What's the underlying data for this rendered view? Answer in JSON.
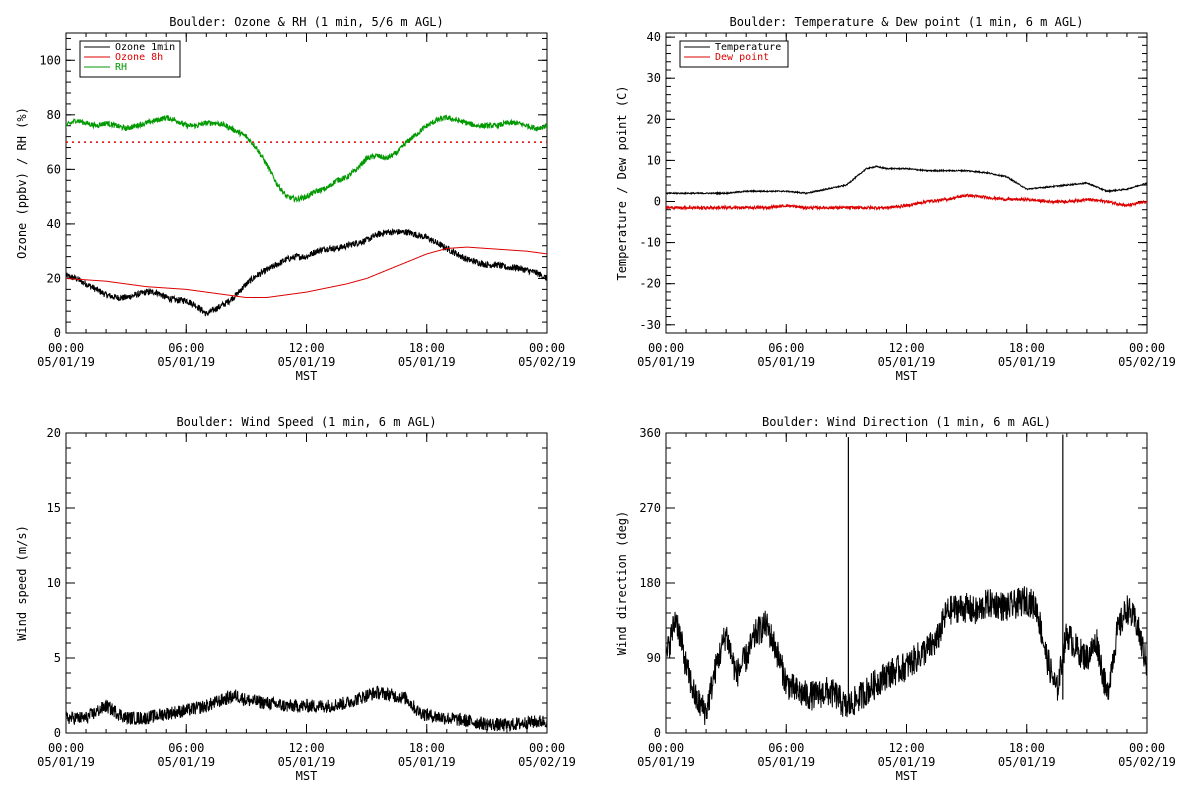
{
  "chart_data": [
    {
      "type": "line",
      "title": "Boulder: Ozone & RH (1 min, 5/6 m AGL)",
      "xlabel": "MST",
      "ylabel": "Ozone (ppbv) / RH (%)",
      "ylim": [
        0,
        110
      ],
      "yticks": [
        "0",
        "20",
        "40",
        "60",
        "80",
        "100"
      ],
      "ytick_values": [
        0,
        20,
        40,
        60,
        80,
        100
      ],
      "xticks": [
        {
          "time": "00:00",
          "date": "05/01/19"
        },
        {
          "time": "06:00",
          "date": "05/01/19"
        },
        {
          "time": "12:00",
          "date": "05/01/19"
        },
        {
          "time": "18:00",
          "date": "05/01/19"
        },
        {
          "time": "00:00",
          "date": "05/02/19"
        }
      ],
      "xlim_hours": [
        0,
        24
      ],
      "legend": [
        {
          "label": "Ozone 1min",
          "color": "#000000"
        },
        {
          "label": "Ozone 8h",
          "color": "#dd0000"
        },
        {
          "label": "RH",
          "color": "#009900"
        }
      ],
      "legend_position": "top-left",
      "reference_line": {
        "y": 70,
        "color": "#dd0000",
        "style": "dotted"
      },
      "series": [
        {
          "name": "Ozone 1min",
          "color": "#000000",
          "noise": 1.2,
          "x": [
            0,
            0.5,
            1,
            1.5,
            2,
            2.5,
            3,
            3.5,
            4,
            4.5,
            5,
            5.5,
            6,
            6.5,
            7,
            7.5,
            8,
            8.5,
            9,
            9.5,
            10,
            10.5,
            11,
            11.5,
            12,
            12.5,
            13,
            13.5,
            14,
            14.5,
            15,
            15.5,
            16,
            16.5,
            17,
            17.5,
            18,
            18.5,
            19,
            19.5,
            20,
            20.5,
            21,
            21.5,
            22,
            22.5,
            23,
            23.5,
            24
          ],
          "y": [
            21,
            20,
            18,
            16,
            14,
            13,
            13,
            14,
            15,
            15,
            13,
            12,
            12,
            10,
            7,
            9,
            11,
            14,
            18,
            21,
            23,
            25,
            27,
            28,
            28,
            30,
            31,
            31,
            32,
            33,
            34,
            36,
            37,
            37,
            37,
            36,
            35,
            33,
            31,
            29,
            27,
            26,
            25,
            25,
            24,
            24,
            23,
            22,
            20
          ]
        },
        {
          "name": "Ozone 8h",
          "color": "#dd0000",
          "noise": 0,
          "x": [
            0,
            1,
            2,
            3,
            4,
            5,
            6,
            7,
            8,
            9,
            10,
            11,
            12,
            13,
            14,
            15,
            16,
            17,
            18,
            19,
            20,
            21,
            22,
            23,
            24
          ],
          "y": [
            20,
            19.5,
            19,
            18,
            17,
            16.5,
            16,
            15,
            14,
            13,
            13,
            14,
            15,
            16.5,
            18,
            20,
            23,
            26,
            29,
            31,
            31.5,
            31,
            30.5,
            30,
            29
          ]
        },
        {
          "name": "RH",
          "color": "#009900",
          "noise": 1.0,
          "x": [
            0,
            0.5,
            1,
            1.5,
            2,
            2.5,
            3,
            3.5,
            4,
            4.5,
            5,
            5.5,
            6,
            6.5,
            7,
            7.5,
            8,
            8.5,
            9,
            9.5,
            10,
            10.5,
            11,
            11.5,
            12,
            12.5,
            13,
            13.5,
            14,
            14.5,
            15,
            15.5,
            16,
            16.5,
            17,
            17.5,
            18,
            18.5,
            19,
            19.5,
            20,
            20.5,
            21,
            21.5,
            22,
            22.5,
            23,
            23.5,
            24
          ],
          "y": [
            76,
            78,
            77,
            76,
            77,
            76,
            75,
            76,
            77,
            78,
            79,
            78,
            76,
            76,
            77,
            77,
            76,
            74,
            72,
            68,
            62,
            55,
            50,
            49,
            50,
            52,
            53,
            56,
            57,
            60,
            64,
            65,
            64,
            66,
            70,
            73,
            76,
            78,
            79,
            78,
            77,
            76,
            76,
            76,
            77,
            77,
            76,
            75,
            76
          ]
        }
      ]
    },
    {
      "type": "line",
      "title": "Boulder: Temperature & Dew point (1 min, 6 m AGL)",
      "xlabel": "MST",
      "ylabel": "Temperature / Dew point (C)",
      "ylim": [
        -32,
        41
      ],
      "yticks": [
        "-30",
        "-20",
        "-10",
        "0",
        "10",
        "20",
        "30",
        "40"
      ],
      "ytick_values": [
        -30,
        -20,
        -10,
        0,
        10,
        20,
        30,
        40
      ],
      "xticks": [
        {
          "time": "00:00",
          "date": "05/01/19"
        },
        {
          "time": "06:00",
          "date": "05/01/19"
        },
        {
          "time": "12:00",
          "date": "05/01/19"
        },
        {
          "time": "18:00",
          "date": "05/01/19"
        },
        {
          "time": "00:00",
          "date": "05/02/19"
        }
      ],
      "xlim_hours": [
        0,
        24
      ],
      "legend": [
        {
          "label": "Temperature",
          "color": "#000000"
        },
        {
          "label": "Dew point",
          "color": "#dd0000"
        }
      ],
      "legend_position": "top-left",
      "series": [
        {
          "name": "Temperature",
          "color": "#000000",
          "noise": 0.15,
          "x": [
            0,
            1,
            2,
            3,
            4,
            5,
            6,
            7,
            8,
            9,
            9.5,
            10,
            10.5,
            11,
            12,
            13,
            14,
            15,
            16,
            17,
            18,
            19,
            20,
            21,
            22,
            23,
            24
          ],
          "y": [
            2,
            2,
            2,
            2,
            2.5,
            2.5,
            2.5,
            2,
            3,
            4,
            6,
            8,
            8.5,
            8,
            8,
            7.5,
            7.5,
            7.5,
            7,
            6,
            3,
            3.5,
            4,
            4.5,
            2.5,
            3,
            4.5
          ]
        },
        {
          "name": "Dew point",
          "color": "#dd0000",
          "noise": 0.35,
          "x": [
            0,
            1,
            2,
            3,
            4,
            5,
            6,
            7,
            8,
            9,
            10,
            11,
            12,
            13,
            14,
            15,
            16,
            17,
            18,
            19,
            20,
            21,
            22,
            23,
            24
          ],
          "y": [
            -1.5,
            -1.5,
            -1.5,
            -1.5,
            -1.5,
            -1.5,
            -1,
            -1.5,
            -1.5,
            -1.5,
            -1.5,
            -1.5,
            -1,
            0,
            0.5,
            1.5,
            1,
            0.5,
            0.5,
            0,
            0,
            0.5,
            0,
            -1,
            0
          ]
        }
      ]
    },
    {
      "type": "line",
      "title": "Boulder: Wind Speed (1 min, 6 m AGL)",
      "xlabel": "MST",
      "ylabel": "Wind speed (m/s)",
      "ylim": [
        0,
        20
      ],
      "yticks": [
        "0",
        "5",
        "10",
        "15",
        "20"
      ],
      "ytick_values": [
        0,
        5,
        10,
        15,
        20
      ],
      "xticks": [
        {
          "time": "00:00",
          "date": "05/01/19"
        },
        {
          "time": "06:00",
          "date": "05/01/19"
        },
        {
          "time": "12:00",
          "date": "05/01/19"
        },
        {
          "time": "18:00",
          "date": "05/01/19"
        },
        {
          "time": "00:00",
          "date": "05/02/19"
        }
      ],
      "xlim_hours": [
        0,
        24
      ],
      "series": [
        {
          "color": "#000000",
          "noise": 0.45,
          "x": [
            0,
            1,
            2,
            3,
            4,
            5,
            6,
            7,
            8,
            8.5,
            9,
            10,
            11,
            12,
            13,
            14,
            15,
            15.5,
            16,
            17,
            17.5,
            18,
            19,
            20,
            21,
            22,
            23,
            24
          ],
          "y": [
            1,
            1,
            1.8,
            1,
            1,
            1.3,
            1.5,
            1.8,
            2.3,
            2.5,
            2.2,
            2,
            1.8,
            1.8,
            1.8,
            2,
            2.5,
            2.7,
            2.6,
            2.3,
            1.5,
            1.2,
            1,
            0.8,
            0.6,
            0.5,
            0.7,
            0.8
          ]
        }
      ]
    },
    {
      "type": "line",
      "title": "Boulder: Wind Direction (1 min, 6 m AGL)",
      "xlabel": "MST",
      "ylabel": "Wind direction (deg)",
      "ylim": [
        0,
        360
      ],
      "yticks": [
        "0",
        "90",
        "180",
        "270",
        "360"
      ],
      "ytick_values": [
        0,
        90,
        180,
        270,
        360
      ],
      "xticks": [
        {
          "time": "00:00",
          "date": "05/01/19"
        },
        {
          "time": "06:00",
          "date": "05/01/19"
        },
        {
          "time": "12:00",
          "date": "05/01/19"
        },
        {
          "time": "18:00",
          "date": "05/01/19"
        },
        {
          "time": "00:00",
          "date": "05/02/19"
        }
      ],
      "xlim_hours": [
        0,
        24
      ],
      "spikes": [
        {
          "x": 9.1,
          "y": 355
        },
        {
          "x": 19.8,
          "y": 358
        }
      ],
      "series": [
        {
          "color": "#000000",
          "noise": 18,
          "x": [
            0,
            0.5,
            1,
            1.5,
            2,
            2.5,
            3,
            3.5,
            4,
            4.5,
            5,
            5.5,
            6,
            6.5,
            7,
            7.5,
            8,
            8.5,
            9,
            9.5,
            10,
            10.5,
            11,
            11.5,
            12,
            12.5,
            13,
            13.5,
            14,
            14.5,
            15,
            15.5,
            16,
            16.5,
            17,
            17.5,
            18,
            18.5,
            19,
            19.5,
            20,
            20.5,
            21,
            21.5,
            22,
            22.5,
            23,
            23.5,
            24
          ],
          "y": [
            90,
            140,
            80,
            40,
            25,
            80,
            120,
            70,
            90,
            120,
            130,
            100,
            60,
            50,
            45,
            45,
            50,
            45,
            30,
            40,
            50,
            60,
            70,
            75,
            80,
            90,
            100,
            110,
            145,
            150,
            150,
            145,
            155,
            155,
            150,
            155,
            160,
            150,
            90,
            50,
            120,
            100,
            90,
            110,
            45,
            120,
            150,
            130,
            80
          ]
        }
      ]
    }
  ]
}
